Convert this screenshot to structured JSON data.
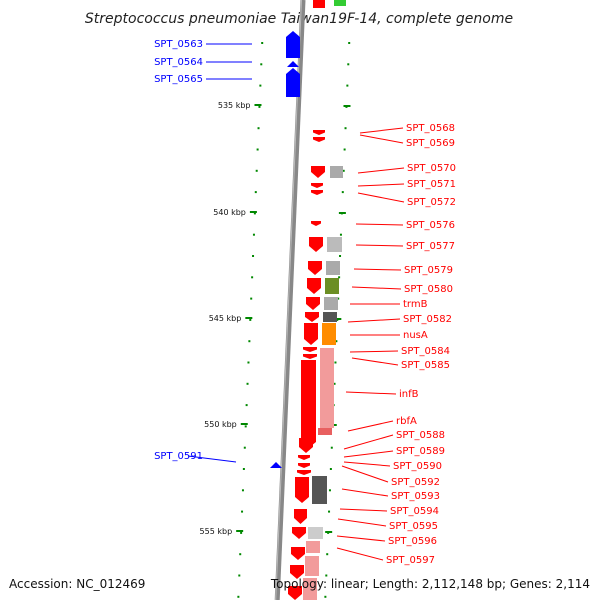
{
  "title": "Streptococcus pneumoniae Taiwan19F-14, complete genome",
  "footer": {
    "accession": "Accession: NC_012469",
    "topology": "Topology: linear; Length: 2,112,148 bp; Genes: 2,114"
  },
  "colors": {
    "forward": "#ff0000",
    "reverse": "#0000ff",
    "backbone": "#888888",
    "ticks": "#008800"
  },
  "scale_ticks": [
    {
      "label": "535 kbp"
    },
    {
      "label": "540 kbp"
    },
    {
      "label": "545 kbp"
    },
    {
      "label": "550 kbp"
    },
    {
      "label": "555 kbp"
    }
  ],
  "left_genes": [
    {
      "label": "SPT_0563"
    },
    {
      "label": "SPT_0564"
    },
    {
      "label": "SPT_0565"
    },
    {
      "label": "SPT_0591"
    }
  ],
  "right_genes": [
    {
      "label": "SPT_0568"
    },
    {
      "label": "SPT_0569"
    },
    {
      "label": "SPT_0570"
    },
    {
      "label": "SPT_0571"
    },
    {
      "label": "SPT_0572"
    },
    {
      "label": "SPT_0576"
    },
    {
      "label": "SPT_0577"
    },
    {
      "label": "SPT_0579"
    },
    {
      "label": "SPT_0580"
    },
    {
      "label": "trmB"
    },
    {
      "label": "SPT_0582"
    },
    {
      "label": "nusA"
    },
    {
      "label": "SPT_0584"
    },
    {
      "label": "SPT_0585"
    },
    {
      "label": "infB"
    },
    {
      "label": "rbfA"
    },
    {
      "label": "SPT_0588"
    },
    {
      "label": "SPT_0589"
    },
    {
      "label": "SPT_0590"
    },
    {
      "label": "SPT_0592"
    },
    {
      "label": "SPT_0593"
    },
    {
      "label": "SPT_0594"
    },
    {
      "label": "SPT_0595"
    },
    {
      "label": "SPT_0596"
    },
    {
      "label": "SPT_0597"
    }
  ]
}
